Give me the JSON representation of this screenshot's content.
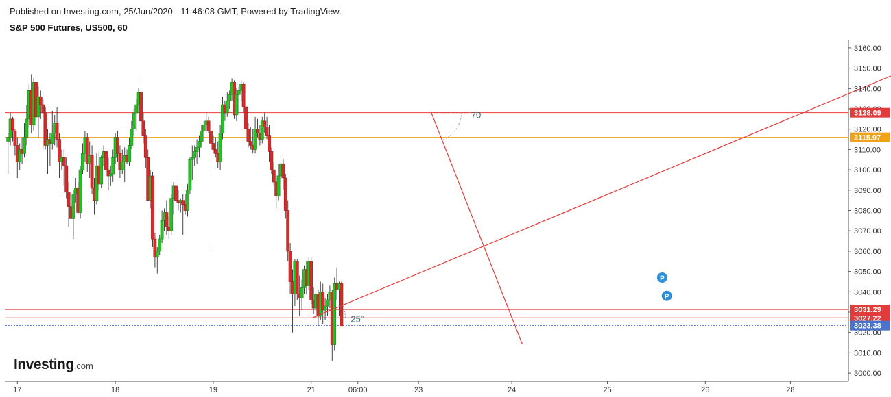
{
  "header": {
    "published": "Published on Investing.com, 25/Jun/2020 - 11:46:08 GMT, Powered by TradingView.",
    "symbol": "S&P 500 Futures, US500, 60"
  },
  "logo": {
    "brand": "Investing",
    "domain": ".com"
  },
  "chart_data": {
    "type": "candlestick",
    "ylim": [
      2996,
      3164
    ],
    "y_ticks": [
      3000,
      3010,
      3020,
      3030,
      3040,
      3050,
      3060,
      3070,
      3080,
      3090,
      3100,
      3110,
      3120,
      3130,
      3140,
      3150,
      3160
    ],
    "x_ticks": [
      {
        "label": "17",
        "t": 4.5
      },
      {
        "label": "18",
        "t": 46.5
      },
      {
        "label": "19",
        "t": 88.5
      },
      {
        "label": "21",
        "t": 130.5
      },
      {
        "label": "06:00",
        "t": 150.5
      },
      {
        "label": "23",
        "t": 176.5
      },
      {
        "label": "24",
        "t": 216.5
      },
      {
        "label": "25",
        "t": 257.5
      },
      {
        "label": "26",
        "t": 299.5
      },
      {
        "label": "28",
        "t": 336
      }
    ],
    "candles": [
      [
        3114,
        3118,
        3098,
        3116
      ],
      [
        3116,
        3128,
        3112,
        3125
      ],
      [
        3125,
        3126,
        3114,
        3119
      ],
      [
        3119,
        3120,
        3107,
        3112
      ],
      [
        3112,
        3116,
        3096,
        3104
      ],
      [
        3104,
        3113,
        3100,
        3110
      ],
      [
        3110,
        3116,
        3103,
        3108
      ],
      [
        3108,
        3123,
        3106,
        3116
      ],
      [
        3116,
        3132,
        3112,
        3125
      ],
      [
        3125,
        3142,
        3121,
        3139
      ],
      [
        3139,
        3147,
        3118,
        3122
      ],
      [
        3122,
        3145,
        3119,
        3143
      ],
      [
        3143,
        3144,
        3123,
        3126
      ],
      [
        3126,
        3141,
        3116,
        3136
      ],
      [
        3136,
        3139,
        3125,
        3132
      ],
      [
        3132,
        3135,
        3110,
        3128
      ],
      [
        3128,
        3131,
        3110,
        3112
      ],
      [
        3112,
        3120,
        3098,
        3115
      ],
      [
        3115,
        3118,
        3102,
        3113
      ],
      [
        3113,
        3129,
        3110,
        3118
      ],
      [
        3118,
        3127,
        3112,
        3123
      ],
      [
        3123,
        3131,
        3111,
        3115
      ],
      [
        3115,
        3118,
        3096,
        3104
      ],
      [
        3104,
        3110,
        3100,
        3106
      ],
      [
        3106,
        3110,
        3092,
        3102
      ],
      [
        3102,
        3106,
        3086,
        3089
      ],
      [
        3089,
        3094,
        3072,
        3082
      ],
      [
        3082,
        3088,
        3065,
        3076
      ],
      [
        3076,
        3090,
        3066,
        3088
      ],
      [
        3088,
        3096,
        3084,
        3091
      ],
      [
        3091,
        3094,
        3078,
        3079
      ],
      [
        3079,
        3102,
        3076,
        3100
      ],
      [
        3100,
        3113,
        3098,
        3108
      ],
      [
        3108,
        3119,
        3104,
        3116
      ],
      [
        3116,
        3118,
        3099,
        3103
      ],
      [
        3103,
        3114,
        3096,
        3107
      ],
      [
        3107,
        3112,
        3088,
        3091
      ],
      [
        3091,
        3096,
        3078,
        3085
      ],
      [
        3085,
        3108,
        3083,
        3102
      ],
      [
        3102,
        3109,
        3090,
        3093
      ],
      [
        3093,
        3107,
        3091,
        3106
      ],
      [
        3106,
        3112,
        3102,
        3109
      ],
      [
        3109,
        3110,
        3098,
        3100
      ],
      [
        3100,
        3106,
        3090,
        3097
      ],
      [
        3097,
        3102,
        3092,
        3098
      ],
      [
        3098,
        3110,
        3094,
        3106
      ],
      [
        3106,
        3118,
        3103,
        3116
      ],
      [
        3116,
        3119,
        3104,
        3108
      ],
      [
        3108,
        3112,
        3096,
        3100
      ],
      [
        3100,
        3110,
        3098,
        3104
      ],
      [
        3104,
        3111,
        3094,
        3107
      ],
      [
        3107,
        3110,
        3103,
        3104
      ],
      [
        3104,
        3116,
        3102,
        3112
      ],
      [
        3112,
        3124,
        3110,
        3120
      ],
      [
        3120,
        3130,
        3117,
        3128
      ],
      [
        3128,
        3135,
        3119,
        3132
      ],
      [
        3132,
        3140,
        3128,
        3138
      ],
      [
        3138,
        3145,
        3120,
        3124
      ],
      [
        3124,
        3128,
        3113,
        3117
      ],
      [
        3117,
        3120,
        3101,
        3106
      ],
      [
        3106,
        3110,
        3085,
        3085
      ],
      [
        3085,
        3100,
        3081,
        3097
      ],
      [
        3097,
        3099,
        3062,
        3066
      ],
      [
        3066,
        3069,
        3052,
        3057
      ],
      [
        3057,
        3062,
        3049,
        3060
      ],
      [
        3060,
        3068,
        3058,
        3066
      ],
      [
        3066,
        3080,
        3064,
        3075
      ],
      [
        3075,
        3081,
        3070,
        3079
      ],
      [
        3079,
        3085,
        3068,
        3072
      ],
      [
        3072,
        3077,
        3066,
        3070
      ],
      [
        3070,
        3088,
        3068,
        3086
      ],
      [
        3086,
        3094,
        3078,
        3092
      ],
      [
        3092,
        3095,
        3082,
        3085
      ],
      [
        3085,
        3090,
        3080,
        3084
      ],
      [
        3084,
        3086,
        3079,
        3085
      ],
      [
        3085,
        3088,
        3068,
        3083
      ],
      [
        3083,
        3088,
        3078,
        3080
      ],
      [
        3080,
        3093,
        3077,
        3090
      ],
      [
        3090,
        3106,
        3088,
        3105
      ],
      [
        3105,
        3112,
        3095,
        3106
      ],
      [
        3106,
        3112,
        3102,
        3109
      ],
      [
        3109,
        3115,
        3103,
        3111
      ],
      [
        3111,
        3117,
        3106,
        3114
      ],
      [
        3114,
        3122,
        3111,
        3119
      ],
      [
        3119,
        3124,
        3114,
        3122
      ],
      [
        3122,
        3128,
        3118,
        3124
      ],
      [
        3124,
        3126,
        3118,
        3119
      ],
      [
        3119,
        3121,
        3062,
        3113
      ],
      [
        3113,
        3117,
        3108,
        3110
      ],
      [
        3110,
        3116,
        3106,
        3108
      ],
      [
        3108,
        3114,
        3101,
        3104
      ],
      [
        3104,
        3122,
        3100,
        3118
      ],
      [
        3118,
        3136,
        3115,
        3132
      ],
      [
        3132,
        3134,
        3124,
        3128
      ],
      [
        3128,
        3138,
        3126,
        3134
      ],
      [
        3134,
        3139,
        3130,
        3137
      ],
      [
        3137,
        3145,
        3134,
        3143
      ],
      [
        3143,
        3144,
        3125,
        3127
      ],
      [
        3127,
        3140,
        3124,
        3137
      ],
      [
        3137,
        3141,
        3128,
        3139
      ],
      [
        3139,
        3144,
        3134,
        3142
      ],
      [
        3142,
        3143,
        3128,
        3131
      ],
      [
        3131,
        3132,
        3114,
        3120
      ],
      [
        3120,
        3123,
        3111,
        3114
      ],
      [
        3114,
        3121,
        3110,
        3112
      ],
      [
        3112,
        3120,
        3108,
        3110
      ],
      [
        3110,
        3126,
        3108,
        3120
      ],
      [
        3120,
        3125,
        3116,
        3118
      ],
      [
        3118,
        3122,
        3112,
        3115
      ],
      [
        3115,
        3126,
        3113,
        3124
      ],
      [
        3124,
        3128,
        3118,
        3121
      ],
      [
        3121,
        3126,
        3115,
        3117
      ],
      [
        3117,
        3122,
        3104,
        3109
      ],
      [
        3109,
        3111,
        3098,
        3100
      ],
      [
        3100,
        3104,
        3092,
        3094
      ],
      [
        3094,
        3098,
        3081,
        3087
      ],
      [
        3087,
        3103,
        3085,
        3097
      ],
      [
        3097,
        3106,
        3093,
        3103
      ],
      [
        3103,
        3105,
        3090,
        3096
      ],
      [
        3096,
        3098,
        3076,
        3080
      ],
      [
        3080,
        3085,
        3055,
        3060
      ],
      [
        3060,
        3064,
        3039,
        3045
      ],
      [
        3045,
        3051,
        3020,
        3039
      ],
      [
        3039,
        3056,
        3033,
        3055
      ],
      [
        3055,
        3056,
        3036,
        3039
      ],
      [
        3039,
        3048,
        3028,
        3037
      ],
      [
        3037,
        3046,
        3031,
        3042
      ],
      [
        3042,
        3053,
        3039,
        3051
      ],
      [
        3051,
        3055,
        3039,
        3043
      ],
      [
        3043,
        3057,
        3041,
        3055
      ],
      [
        3055,
        3057,
        3034,
        3036
      ],
      [
        3036,
        3042,
        3029,
        3032
      ],
      [
        3032,
        3042,
        3026,
        3039
      ],
      [
        3039,
        3041,
        3023,
        3028
      ],
      [
        3028,
        3045,
        3026,
        3040
      ],
      [
        3040,
        3044,
        3024,
        3031
      ],
      [
        3031,
        3037,
        3026,
        3033
      ],
      [
        3033,
        3039,
        3028,
        3036
      ],
      [
        3036,
        3043,
        3032,
        3040
      ],
      [
        3040,
        3041,
        3006,
        3014
      ],
      [
        3014,
        3047,
        3011,
        3044
      ],
      [
        3044,
        3052,
        3036,
        3041
      ],
      [
        3041,
        3045,
        3028,
        3044
      ],
      [
        3044,
        3045,
        3023,
        3023
      ]
    ],
    "colors": {
      "up": "#26c026",
      "down": "#d62b2b",
      "up_border": "#1a8a1a",
      "down_border": "#a11d1d"
    },
    "horizontal_levels": [
      {
        "value": 3128.09,
        "label": "3128.09",
        "color": "#e23b3b",
        "style": "solid"
      },
      {
        "value": 3115.97,
        "label": "3115.97",
        "color": "#f0a218",
        "style": "solid"
      },
      {
        "value": 3031.29,
        "label": "3031.29",
        "color": "#e23b3b",
        "style": "solid"
      },
      {
        "value": 3027.22,
        "label": "3027.22",
        "color": "#e23b3b",
        "style": "solid"
      },
      {
        "value": 3023.38,
        "label": "3023.38",
        "color": "#4a74c9",
        "style": "dotted",
        "current": true
      }
    ],
    "trend_lines": [
      {
        "from": [
          131,
          3027.22
        ],
        "to": [
          391,
          3151.9
        ],
        "color": "#e23b3b",
        "angle_label": "25°"
      },
      {
        "from": [
          182,
          3128.09
        ],
        "to": [
          221,
          3014.3
        ],
        "color": "#e23b3b",
        "angle_label": "70"
      }
    ],
    "markers": [
      {
        "label": "P",
        "t": 281,
        "value": 3047,
        "color": "#2f8ed8"
      },
      {
        "label": "P",
        "t": 283,
        "value": 3038,
        "color": "#2f8ed8"
      }
    ]
  }
}
